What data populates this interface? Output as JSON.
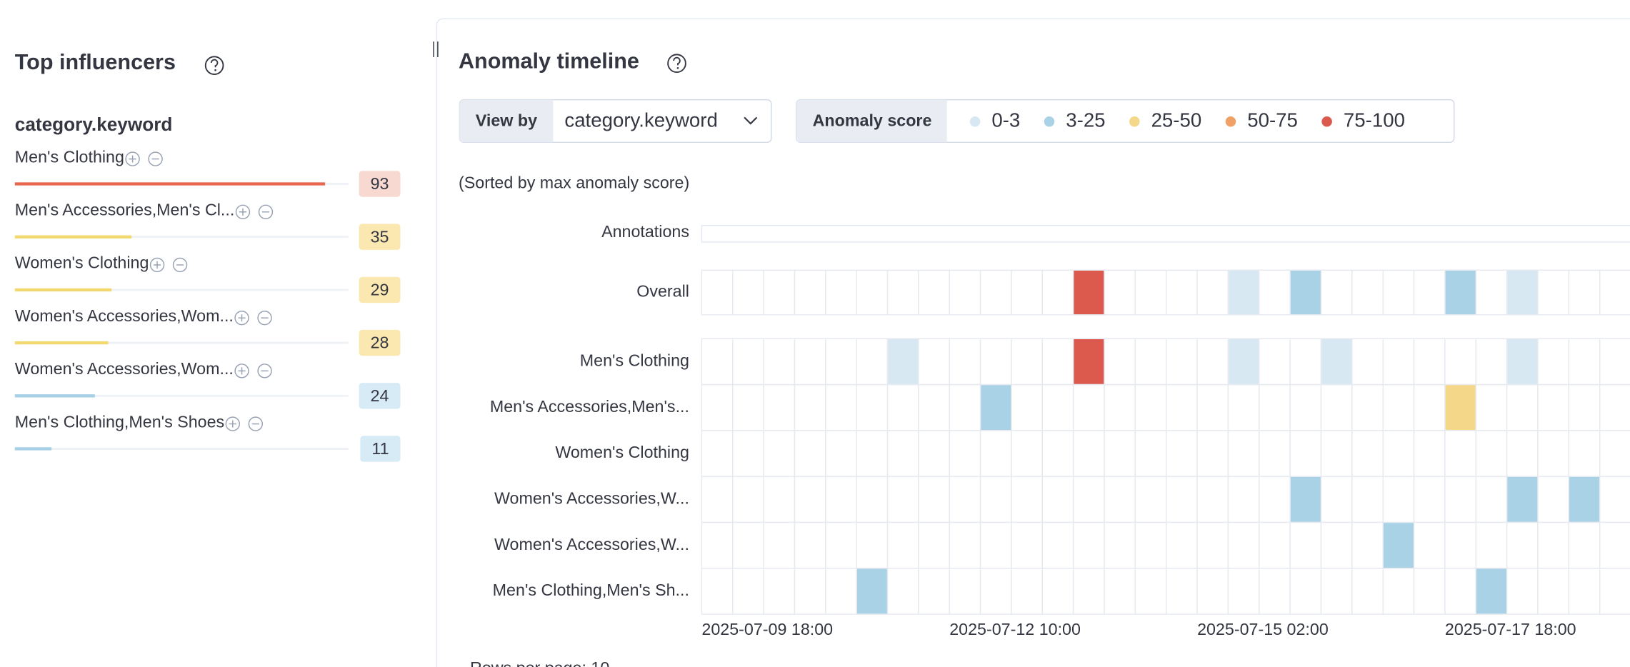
{
  "left": {
    "title": "Top influencers",
    "field": "category.keyword",
    "influencers": [
      {
        "name": "Men's Clothing",
        "score": 93
      },
      {
        "name": "Men's Accessories,Men's Cl...",
        "score": 35
      },
      {
        "name": "Women's Clothing",
        "score": 29
      },
      {
        "name": "Women's Accessories,Wom...",
        "score": 28
      },
      {
        "name": "Women's Accessories,Wom...",
        "score": 24
      },
      {
        "name": "Men's Clothing,Men's Shoes",
        "score": 11
      }
    ]
  },
  "timeline": {
    "title": "Anomaly timeline",
    "view_by_label": "View by",
    "view_by_value": "category.keyword",
    "legend_title": "Anomaly score",
    "legend": [
      {
        "label": "0-3",
        "color": "#d8e8f3"
      },
      {
        "label": "3-25",
        "color": "#a9d2e6"
      },
      {
        "label": "25-50",
        "color": "#f5d78a"
      },
      {
        "label": "50-75",
        "color": "#f0a168"
      },
      {
        "label": "75-100",
        "color": "#dc5a4d"
      }
    ],
    "sorted_note": "(Sorted by max anomaly score)",
    "annotations_label": "Annotations",
    "overall": {
      "label": "Overall",
      "cells": [
        {
          "col": 12,
          "band": 4
        },
        {
          "col": 17,
          "band": 0
        },
        {
          "col": 19,
          "band": 1
        },
        {
          "col": 24,
          "band": 1
        },
        {
          "col": 26,
          "band": 0
        }
      ]
    },
    "rows": [
      {
        "label": "Men's Clothing",
        "cells": [
          {
            "col": 6,
            "band": 0
          },
          {
            "col": 12,
            "band": 4
          },
          {
            "col": 17,
            "band": 0
          },
          {
            "col": 20,
            "band": 0
          },
          {
            "col": 26,
            "band": 0
          }
        ]
      },
      {
        "label": "Men's Accessories,Men's...",
        "cells": [
          {
            "col": 9,
            "band": 1
          },
          {
            "col": 24,
            "band": 2
          }
        ]
      },
      {
        "label": "Women's Clothing",
        "cells": []
      },
      {
        "label": "Women's Accessories,W...",
        "cells": [
          {
            "col": 19,
            "band": 1
          },
          {
            "col": 26,
            "band": 1
          },
          {
            "col": 28,
            "band": 1
          }
        ]
      },
      {
        "label": "Women's Accessories,W...",
        "cells": [
          {
            "col": 22,
            "band": 1
          }
        ]
      },
      {
        "label": "Men's Clothing,Men's Sh...",
        "cells": [
          {
            "col": 5,
            "band": 1
          },
          {
            "col": 25,
            "band": 1
          }
        ]
      }
    ],
    "x_labels": [
      {
        "col": 0,
        "label": "2025-07-09 18:00"
      },
      {
        "col": 8,
        "label": "2025-07-12 10:00"
      },
      {
        "col": 16,
        "label": "2025-07-15 02:00"
      },
      {
        "col": 24,
        "label": "2025-07-17 18:00"
      }
    ],
    "footer": "Rows per page: 10"
  }
}
